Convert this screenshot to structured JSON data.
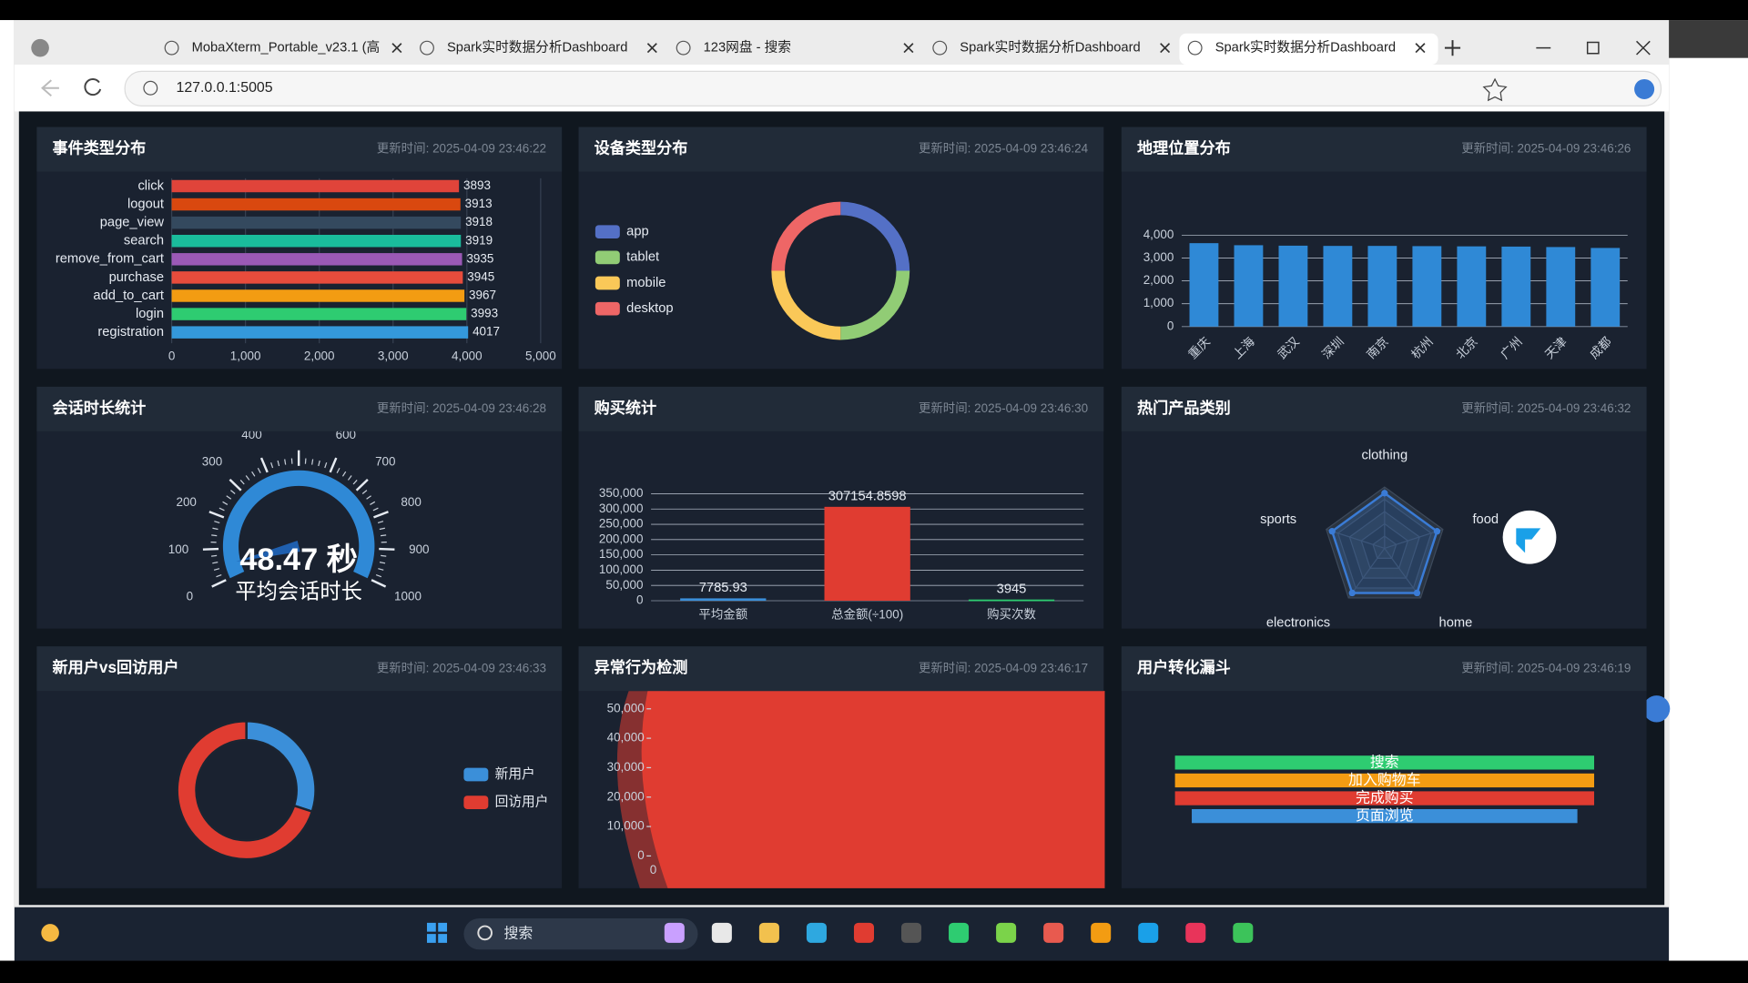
{
  "browser": {
    "tabs": [
      "MobaXterm_Portable_v23.1 (高",
      "Spark实时数据分析Dashboard",
      "123网盘 - 搜索",
      "Spark实时数据分析Dashboard",
      "Spark实时数据分析Dashboard"
    ],
    "url": "127.0.0.1:5005"
  },
  "panels": [
    {
      "title": "事件类型分布",
      "update_time": "更新时间: 2025-04-09 23:46:22",
      "chart": {
        "type": "hbar",
        "categories": [
          "click",
          "logout",
          "page_view",
          "search",
          "remove_from_cart",
          "purchase",
          "add_to_cart",
          "login",
          "registration"
        ],
        "values": [
          3893,
          3913,
          3918,
          3919,
          3935,
          3945,
          3967,
          3993,
          4017
        ],
        "colors": [
          "#e0443a",
          "#d9480f",
          "#34495e",
          "#1abc9c",
          "#9b59b6",
          "#e74c3c",
          "#f39c12",
          "#2ecc71",
          "#3498db"
        ],
        "xlim": [
          0,
          5000
        ],
        "xticks": [
          0,
          {
            "value": 1000,
            "label": "1,000"
          },
          {
            "value": 2000,
            "label": "2,000"
          },
          {
            "value": 3000,
            "label": "3,000"
          },
          {
            "value": 4000,
            "label": "4,000"
          },
          {
            "value": 5000,
            "label": "5,000"
          }
        ],
        "grid": true
      }
    },
    {
      "title": "设备类型分布",
      "update_time": "更新时间: 2025-04-09 23:46:24",
      "chart": {
        "type": "donut",
        "categories": [
          "app",
          "tablet",
          "mobile",
          "desktop"
        ],
        "values": [
          25,
          25,
          25,
          25
        ],
        "colors": [
          "#5470c6",
          "#91cc75",
          "#fac858",
          "#ee6666"
        ]
      }
    },
    {
      "title": "地理位置分布",
      "update_time": "更新时间: 2025-04-09 23:46:26",
      "chart": {
        "type": "bar",
        "categories": [
          "重庆",
          "上海",
          "武汉",
          "深圳",
          "南京",
          "杭州",
          "北京",
          "广州",
          "天津",
          "成都"
        ],
        "values": [
          3650,
          3560,
          3540,
          3530,
          3530,
          3520,
          3510,
          3500,
          3480,
          3440
        ],
        "colors": [
          "#2f89d6"
        ],
        "ylim": [
          0,
          4000
        ],
        "yticks": [
          0,
          {
            "value": 1000,
            "label": "1,000"
          },
          {
            "value": 2000,
            "label": "2,000"
          },
          {
            "value": 3000,
            "label": "3,000"
          },
          {
            "value": 4000,
            "label": "4,000"
          }
        ],
        "grid": true,
        "data_labels": false
      }
    },
    {
      "title": "会话时长统计",
      "update_time": "更新时间: 2025-04-09 23:46:28",
      "chart": {
        "type": "gauge",
        "lim": [
          0,
          1000
        ],
        "ticks": [
          0,
          100,
          200,
          300,
          400,
          500,
          600,
          700,
          800,
          900,
          1000
        ],
        "value": 48.47,
        "value_label": "48.47 秒",
        "label": "平均会话时长",
        "color": "#2f89d6"
      }
    },
    {
      "title": "购买统计",
      "update_time": "更新时间: 2025-04-09 23:46:30",
      "chart": {
        "type": "bar",
        "categories": [
          "平均金额",
          "总金额(÷100)",
          "购买次数"
        ],
        "values": [
          7785.93,
          307154.8598,
          3945
        ],
        "colors": [
          "#3b8fd9",
          "#e03c31",
          "#2ecc71"
        ],
        "ylim": [
          0,
          350000
        ],
        "yticks": [
          0,
          {
            "value": 50000,
            "label": "50,000"
          },
          {
            "value": 100000,
            "label": "100,000"
          },
          {
            "value": 150000,
            "label": "150,000"
          },
          {
            "value": 200000,
            "label": "200,000"
          },
          {
            "value": 250000,
            "label": "250,000"
          },
          {
            "value": 300000,
            "label": "300,000"
          },
          {
            "value": 350000,
            "label": "350,000"
          }
        ],
        "grid": true,
        "data_labels": true
      }
    },
    {
      "title": "热门产品类别",
      "update_time": "更新时间: 2025-04-09 23:46:32",
      "chart": {
        "type": "radar",
        "indicators": [
          "clothing",
          "food",
          "home",
          "electronics",
          "sports"
        ],
        "values": [
          90,
          90,
          90,
          90,
          90
        ],
        "rlim": [
          0,
          100
        ],
        "color": "#3a7bd5"
      }
    },
    {
      "title": "新用户vs回访用户",
      "update_time": "更新时间: 2025-04-09 23:46:33",
      "chart": {
        "type": "donut",
        "categories": [
          "新用户",
          "回访用户"
        ],
        "values": [
          30,
          70
        ],
        "colors": [
          "#3b8fd9",
          "#e03c31"
        ]
      }
    },
    {
      "title": "异常行为检测",
      "update_time": "更新时间: 2025-04-09 23:46:17",
      "chart": {
        "type": "area",
        "color": "#e03c31",
        "ylim": [
          0,
          50000
        ],
        "yticks": [
          0,
          {
            "value": 10000,
            "label": "10,000"
          },
          {
            "value": 20000,
            "label": "20,000"
          },
          {
            "value": 30000,
            "label": "30,000"
          },
          {
            "value": 40000,
            "label": "40,000"
          },
          {
            "value": 50000,
            "label": "50,000"
          }
        ],
        "xticks": [
          0
        ]
      }
    },
    {
      "title": "用户转化漏斗",
      "update_time": "更新时间: 2025-04-09 23:46:19",
      "chart": {
        "type": "funnel",
        "categories": [
          "搜索",
          "加入购物车",
          "完成购买",
          "页面浏览"
        ],
        "values": [
          100,
          100,
          100,
          92
        ],
        "colors": [
          "#2ecc71",
          "#f39c12",
          "#e03c31",
          "#3b8fd9"
        ]
      }
    }
  ],
  "taskbar": {
    "search": "搜索"
  }
}
